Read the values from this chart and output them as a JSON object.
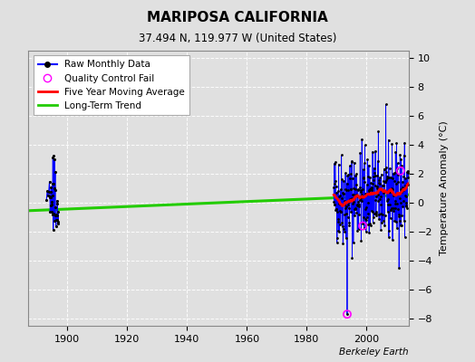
{
  "title": "MARIPOSA CALIFORNIA",
  "subtitle": "37.494 N, 119.977 W (United States)",
  "ylabel": "Temperature Anomaly (°C)",
  "watermark": "Berkeley Earth",
  "xlim": [
    1887,
    2014
  ],
  "ylim": [
    -8.5,
    10.5
  ],
  "yticks": [
    -8,
    -6,
    -4,
    -2,
    0,
    2,
    4,
    6,
    8,
    10
  ],
  "xticks": [
    1900,
    1920,
    1940,
    1960,
    1980,
    2000
  ],
  "background_color": "#e0e0e0",
  "trend_x": [
    1887,
    2014
  ],
  "trend_y": [
    -0.55,
    0.55
  ],
  "modern_start": 1989,
  "modern_end": 2013,
  "qc_fail_points": [
    [
      1993.5,
      -7.7
    ],
    [
      2011.3,
      2.2
    ],
    [
      1998.7,
      -1.6
    ]
  ],
  "early_start": 1893,
  "early_end": 1896
}
